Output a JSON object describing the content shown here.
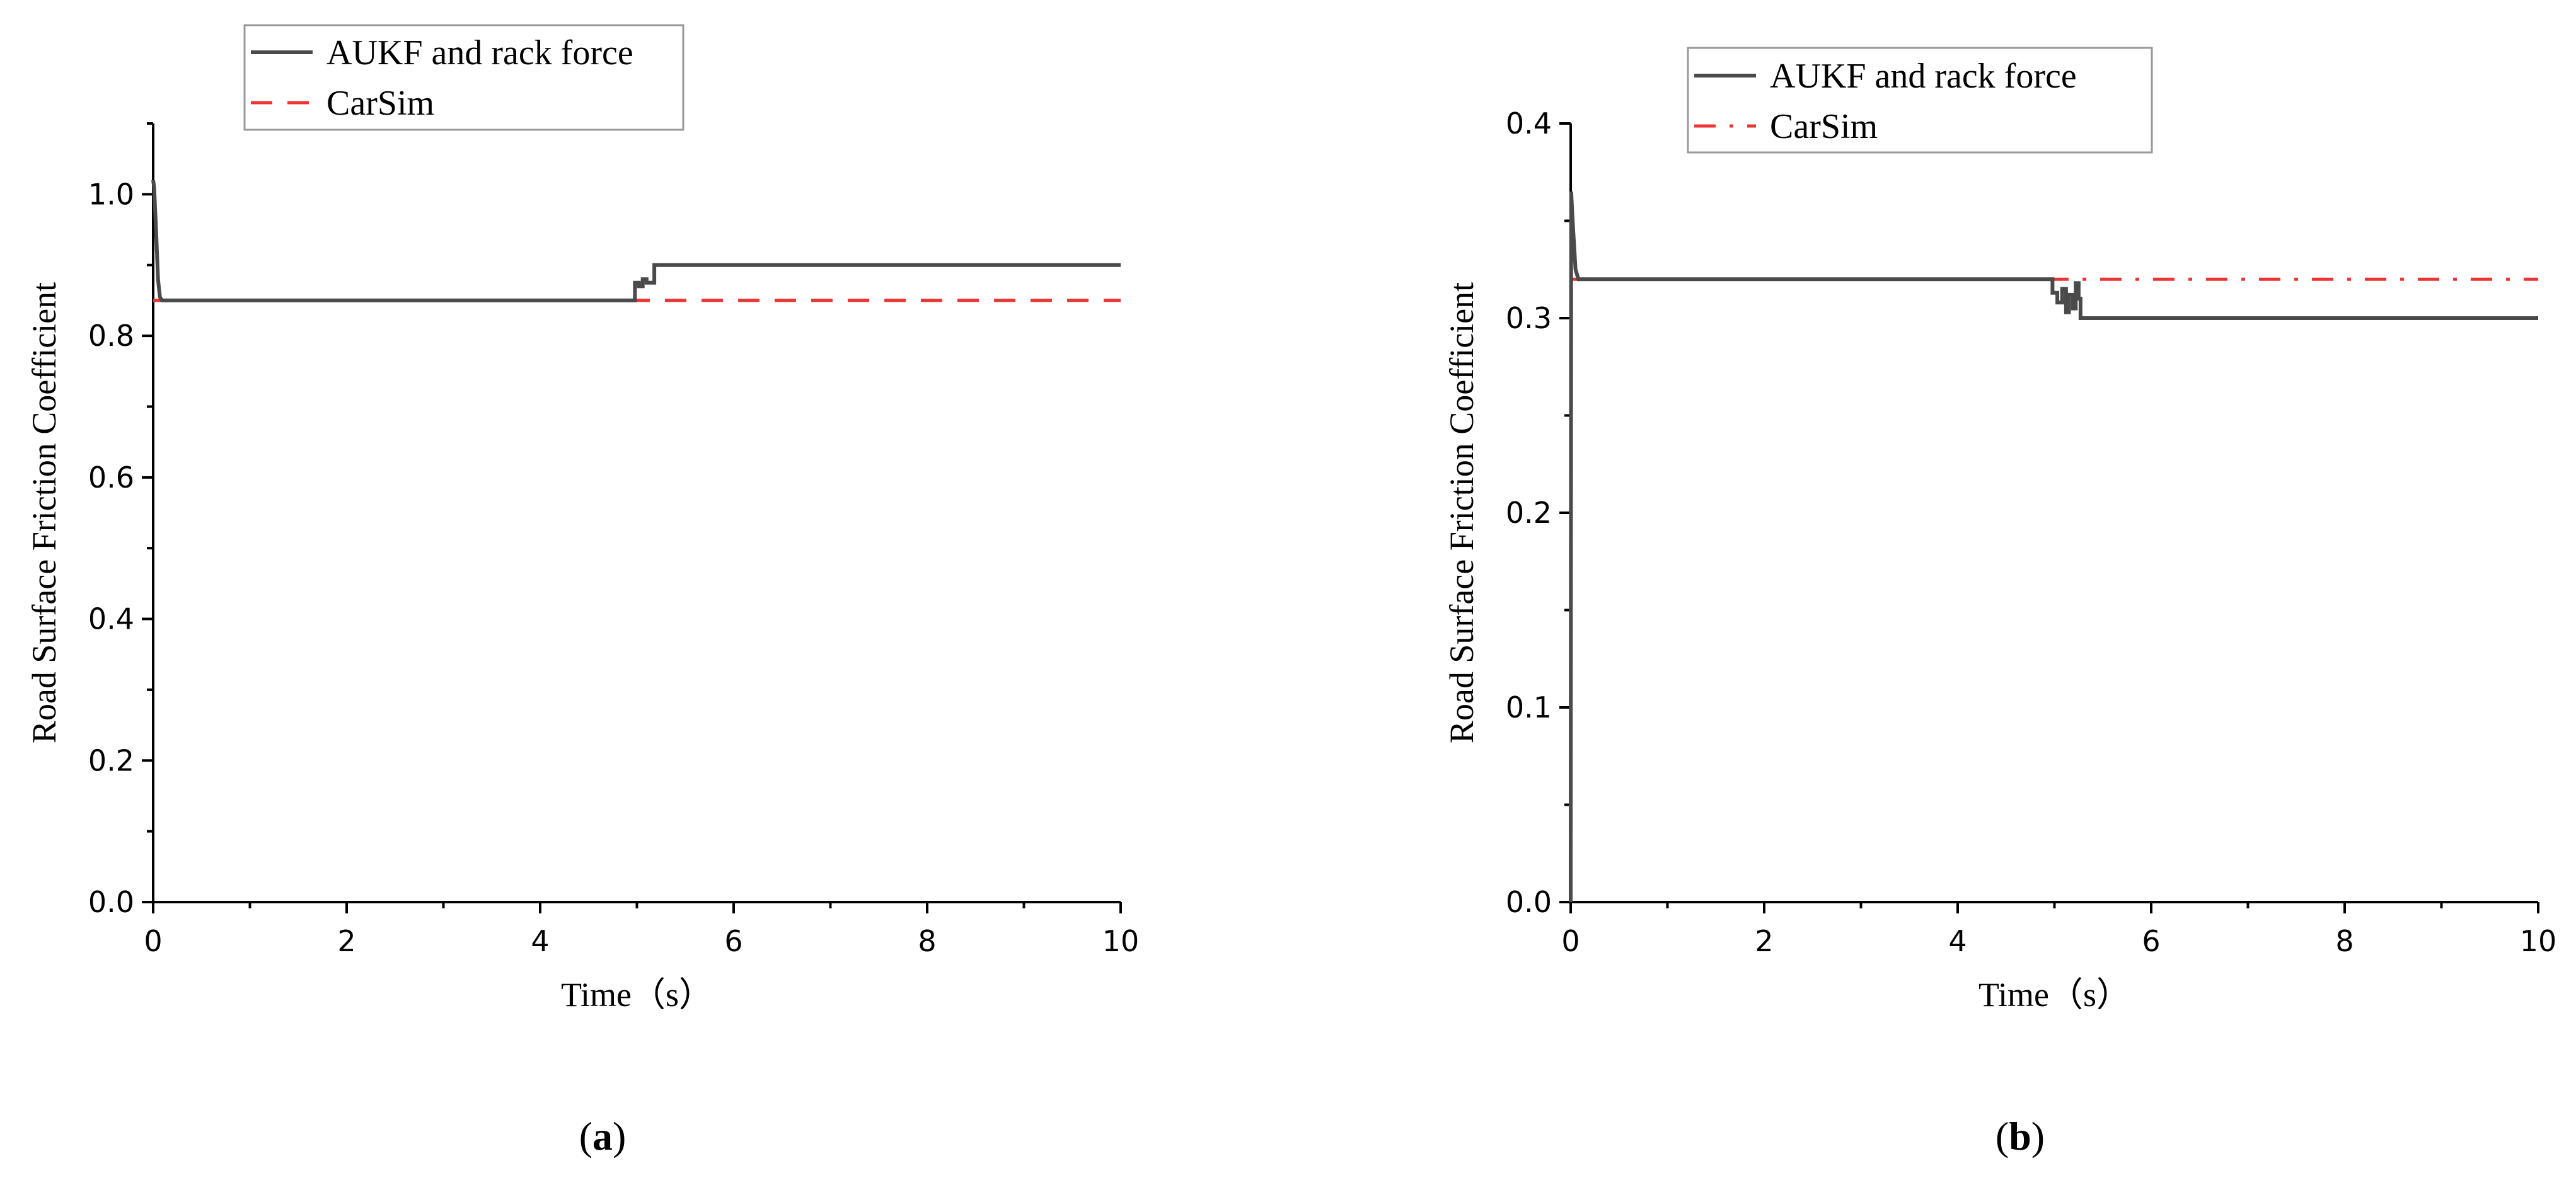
{
  "colors": {
    "estimate": "#4a4a4a",
    "reference": "#ee3333",
    "axis": "#000000",
    "legend_border": "#999999"
  },
  "chart_data": [
    {
      "type": "line",
      "panel_label": {
        "open": "(",
        "letter": "a",
        "close": ")"
      },
      "xlabel": "Time（s）",
      "ylabel": "Road Surface Friction Coefficient",
      "xlim": [
        0,
        10
      ],
      "ylim": [
        0,
        1.1
      ],
      "xticks": [
        0,
        2,
        4,
        6,
        8,
        10
      ],
      "xtick_labels": [
        "0",
        "2",
        "4",
        "6",
        "8",
        "10"
      ],
      "yticks": [
        0,
        0.2,
        0.4,
        0.6,
        0.8,
        1.0
      ],
      "ytick_labels": [
        "0.0",
        "0.2",
        "0.4",
        "0.6",
        "0.8",
        "1.0"
      ],
      "grid": false,
      "legend_position": "top-left",
      "series": [
        {
          "name": "AUKF and rack force",
          "style": "solid",
          "x": [
            0,
            0.01,
            0.03,
            0.05,
            0.07,
            0.09,
            1.0,
            2.0,
            3.0,
            4.0,
            4.98,
            4.98,
            5.02,
            5.02,
            5.06,
            5.06,
            5.1,
            5.1,
            5.18,
            5.18,
            6.0,
            8.0,
            10.0
          ],
          "y": [
            1.02,
            1.01,
            0.95,
            0.88,
            0.855,
            0.85,
            0.85,
            0.85,
            0.85,
            0.85,
            0.85,
            0.875,
            0.875,
            0.87,
            0.87,
            0.88,
            0.88,
            0.875,
            0.875,
            0.9,
            0.9,
            0.9,
            0.9
          ]
        },
        {
          "name": "CarSim",
          "style": "dashed",
          "x": [
            0,
            10
          ],
          "y": [
            0.85,
            0.85
          ]
        }
      ]
    },
    {
      "type": "line",
      "panel_label": {
        "open": "(",
        "letter": "b",
        "close": ")"
      },
      "xlabel": "Time（s）",
      "ylabel": "Road Surface Friction Coefficient",
      "xlim": [
        0,
        10
      ],
      "ylim": [
        0,
        0.4
      ],
      "xticks": [
        0,
        2,
        4,
        6,
        8,
        10
      ],
      "xtick_labels": [
        "0",
        "2",
        "4",
        "6",
        "8",
        "10"
      ],
      "yticks": [
        0,
        0.1,
        0.2,
        0.3,
        0.4
      ],
      "ytick_labels": [
        "0.0",
        "0.1",
        "0.2",
        "0.3",
        "0.4"
      ],
      "grid": false,
      "legend_position": "top-left",
      "series": [
        {
          "name": "AUKF and rack force",
          "style": "solid",
          "x": [
            0,
            0.005,
            0.02,
            0.05,
            0.08,
            1.0,
            2.0,
            3.0,
            4.0,
            4.98,
            4.98,
            5.03,
            5.03,
            5.08,
            5.08,
            5.12,
            5.12,
            5.15,
            5.15,
            5.19,
            5.19,
            5.22,
            5.22,
            5.25,
            5.25,
            5.27,
            5.27,
            6.0,
            8.0,
            10.0
          ],
          "y": [
            0,
            0.365,
            0.35,
            0.325,
            0.32,
            0.32,
            0.32,
            0.32,
            0.32,
            0.32,
            0.313,
            0.313,
            0.308,
            0.308,
            0.315,
            0.315,
            0.303,
            0.303,
            0.312,
            0.312,
            0.305,
            0.305,
            0.318,
            0.318,
            0.31,
            0.31,
            0.3,
            0.3,
            0.3,
            0.3
          ]
        },
        {
          "name": "CarSim",
          "style": "dashdot",
          "x": [
            0,
            10
          ],
          "y": [
            0.32,
            0.32
          ]
        }
      ]
    }
  ]
}
